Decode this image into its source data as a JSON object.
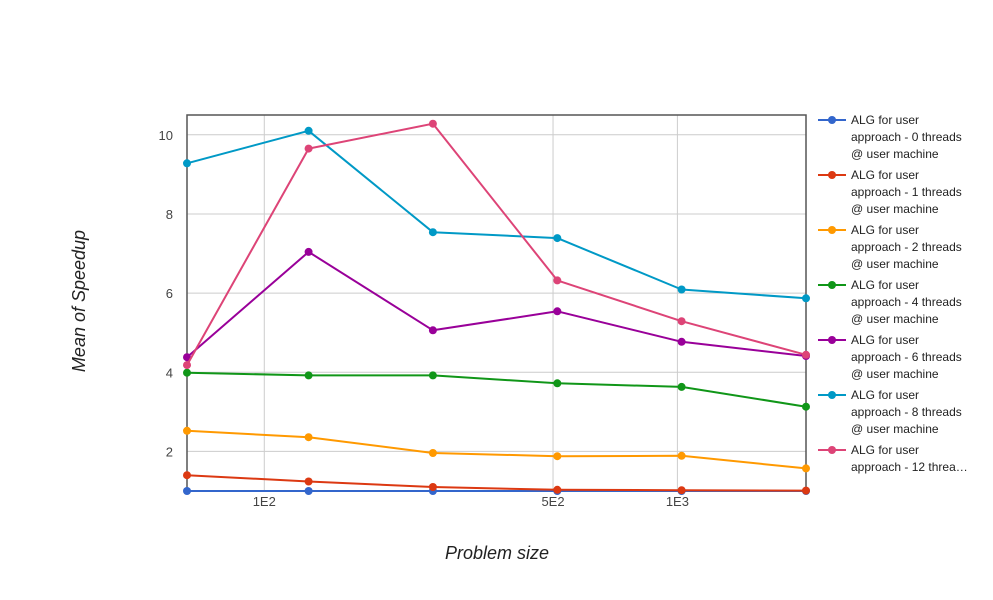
{
  "chart_data": {
    "type": "line",
    "title": "",
    "xlabel": "Problem size",
    "ylabel": "Mean of Speedup",
    "x_scale": "log",
    "x_ticks": [
      {
        "label": "1E2",
        "value": 100
      },
      {
        "label": "5E2",
        "value": 500
      },
      {
        "label": "1E3",
        "value": 1000
      }
    ],
    "y_ticks": [
      2,
      4,
      6,
      8,
      10
    ],
    "ylim": [
      1,
      10.5
    ],
    "grid": true,
    "legend_position": "right",
    "x": [
      65,
      128,
      256,
      512,
      1024,
      2048
    ],
    "series": [
      {
        "name": "ALG for user approach - 0 threads @ user machine",
        "legend_lines": [
          "ALG for user",
          "approach - 0 threads",
          "@ user machine"
        ],
        "color": "#3366cc",
        "values": [
          1.0,
          1.0,
          1.0,
          1.0,
          1.0,
          1.0
        ]
      },
      {
        "name": "ALG for user approach - 1 threads @ user machine",
        "legend_lines": [
          "ALG for user",
          "approach - 1 threads",
          "@ user machine"
        ],
        "color": "#dc3912",
        "values": [
          1.4,
          1.24,
          1.1,
          1.03,
          1.02,
          1.01
        ]
      },
      {
        "name": "ALG for user approach - 2 threads @ user machine",
        "legend_lines": [
          "ALG for user",
          "approach - 2 threads",
          "@ user machine"
        ],
        "color": "#ff9900",
        "values": [
          2.52,
          2.36,
          1.96,
          1.88,
          1.89,
          1.57
        ]
      },
      {
        "name": "ALG for user approach - 4 threads @ user machine",
        "legend_lines": [
          "ALG for user",
          "approach - 4 threads",
          "@ user machine"
        ],
        "color": "#109618",
        "values": [
          3.99,
          3.92,
          3.92,
          3.72,
          3.63,
          3.13
        ]
      },
      {
        "name": "ALG for user approach - 6 threads @ user machine",
        "legend_lines": [
          "ALG for user",
          "approach - 6 threads",
          "@ user machine"
        ],
        "color": "#990099",
        "values": [
          4.38,
          7.04,
          5.06,
          5.54,
          4.77,
          4.41
        ]
      },
      {
        "name": "ALG for user approach - 8 threads @ user machine",
        "legend_lines": [
          "ALG for user",
          "approach - 8 threads",
          "@ user machine"
        ],
        "color": "#0099c6",
        "values": [
          9.28,
          10.1,
          7.54,
          7.39,
          6.09,
          5.87
        ]
      },
      {
        "name": "ALG for user approach - 12 threa…",
        "legend_lines": [
          "ALG for user",
          "approach - 12 threa…"
        ],
        "color": "#dd4477",
        "values": [
          4.18,
          9.65,
          10.28,
          6.32,
          5.29,
          4.44
        ]
      }
    ]
  }
}
